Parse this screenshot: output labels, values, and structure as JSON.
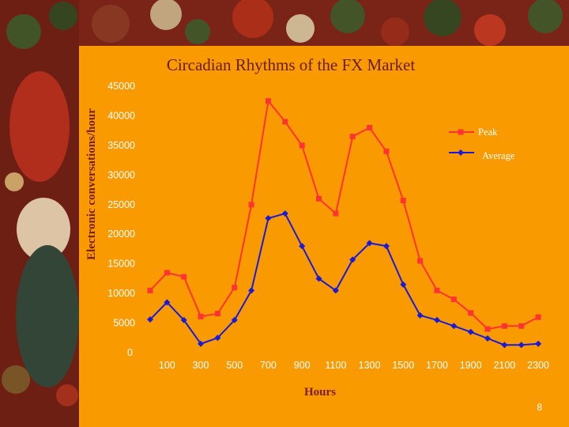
{
  "colors": {
    "background": "#f99a00",
    "peak": "#ff3333",
    "average": "#1a1ad9",
    "title": "#6b1a1a"
  },
  "slide_number": "8",
  "chart_data": {
    "type": "line",
    "title": "Circadian Rhythms of the FX Market",
    "xlabel": "Hours",
    "ylabel": "Electronic conversations/hour",
    "ylim": [
      0,
      45000
    ],
    "y_ticks": [
      "0",
      "5000",
      "10000",
      "15000",
      "20000",
      "25000",
      "30000",
      "35000",
      "40000",
      "45000"
    ],
    "x_tick_labels": [
      "100",
      "300",
      "500",
      "700",
      "900",
      "1100",
      "1300",
      "1500",
      "1700",
      "1900",
      "2100",
      "2300"
    ],
    "x": [
      0,
      100,
      200,
      300,
      400,
      500,
      600,
      700,
      800,
      900,
      1000,
      1100,
      1200,
      1300,
      1400,
      1500,
      1600,
      1700,
      1800,
      1900,
      2000,
      2100,
      2200,
      2300
    ],
    "grid": false,
    "legend_position": "right",
    "series": [
      {
        "name": "Peak",
        "marker": "square",
        "values": [
          10500,
          13500,
          12800,
          6100,
          6600,
          11000,
          25000,
          42500,
          39000,
          35000,
          26000,
          23500,
          36500,
          38000,
          34000,
          25700,
          15500,
          10500,
          9000,
          6700,
          4000,
          4500,
          4500,
          6000
        ]
      },
      {
        "name": "Average",
        "marker": "diamond",
        "values": [
          5600,
          8500,
          5500,
          1500,
          2500,
          5500,
          10500,
          22700,
          23500,
          18000,
          12500,
          10500,
          15700,
          18500,
          18000,
          11500,
          6300,
          5500,
          4500,
          3500,
          2400,
          1300,
          1300,
          1500
        ]
      }
    ]
  }
}
